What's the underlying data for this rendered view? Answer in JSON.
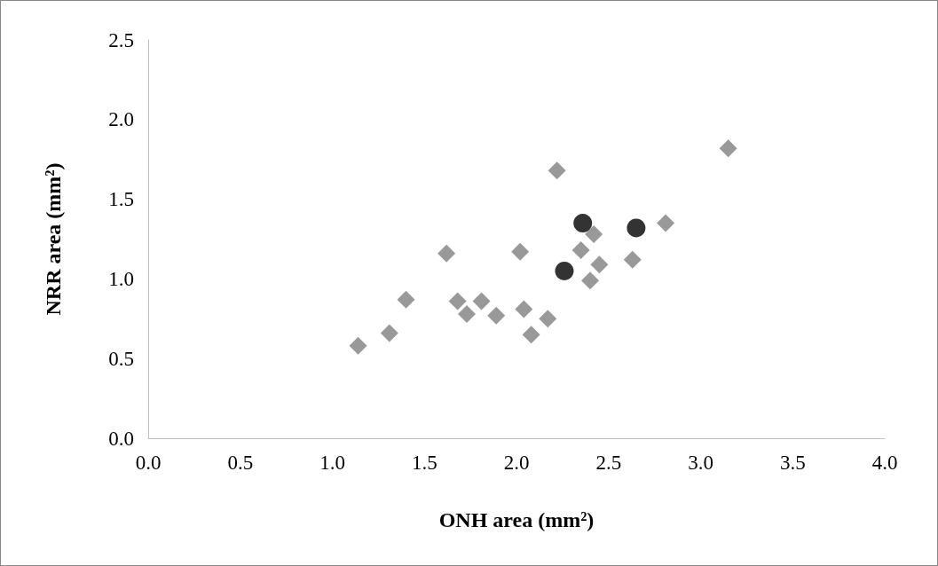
{
  "chart_data": {
    "type": "scatter",
    "xlabel": "ONH area (mm²)",
    "ylabel": "NRR area (mm²)",
    "xlim": [
      0,
      4
    ],
    "ylim": [
      0,
      2.5
    ],
    "xticks": [
      {
        "value": 0,
        "label": "0.0"
      },
      {
        "value": 0.5,
        "label": "0.5"
      },
      {
        "value": 1,
        "label": "1.0"
      },
      {
        "value": 1.5,
        "label": "1.5"
      },
      {
        "value": 2,
        "label": "2.0"
      },
      {
        "value": 2.5,
        "label": "2.5"
      },
      {
        "value": 3,
        "label": "3.0"
      },
      {
        "value": 3.5,
        "label": "3.5"
      },
      {
        "value": 4,
        "label": "4.0"
      }
    ],
    "yticks": [
      {
        "value": 0,
        "label": "0.0"
      },
      {
        "value": 0.5,
        "label": "0.5"
      },
      {
        "value": 1,
        "label": "1.0"
      },
      {
        "value": 1.5,
        "label": "1.5"
      },
      {
        "value": 2,
        "label": "2.0"
      },
      {
        "value": 2.5,
        "label": "2.5"
      }
    ],
    "grid": false,
    "series": [
      {
        "color": "#7f7f7f",
        "marker": "diamond",
        "x": [
          1.14,
          1.4,
          1.62,
          1.68,
          1.73,
          1.81,
          2.02,
          2.08,
          2.17,
          2.35,
          2.42,
          2.4,
          2.45,
          2.63,
          2.81,
          3.15
        ],
        "values": [
          0.58,
          0.87,
          1.16,
          0.86,
          0.78,
          0.86,
          1.17,
          0.65,
          0.75,
          1.18,
          1.28,
          0.99,
          1.09,
          1.12,
          1.35,
          1.82
        ]
      },
      {
        "color": "#7f7f7f",
        "marker": "diamond",
        "x": [
          1.31,
          1.89,
          2.04,
          2.22
        ],
        "values": [
          0.66,
          0.77,
          0.81,
          1.68
        ]
      },
      {
        "color": "#000000",
        "marker": "circle",
        "x": [
          2.26,
          2.36,
          2.65
        ],
        "values": [
          1.05,
          1.35,
          1.32
        ]
      }
    ]
  }
}
